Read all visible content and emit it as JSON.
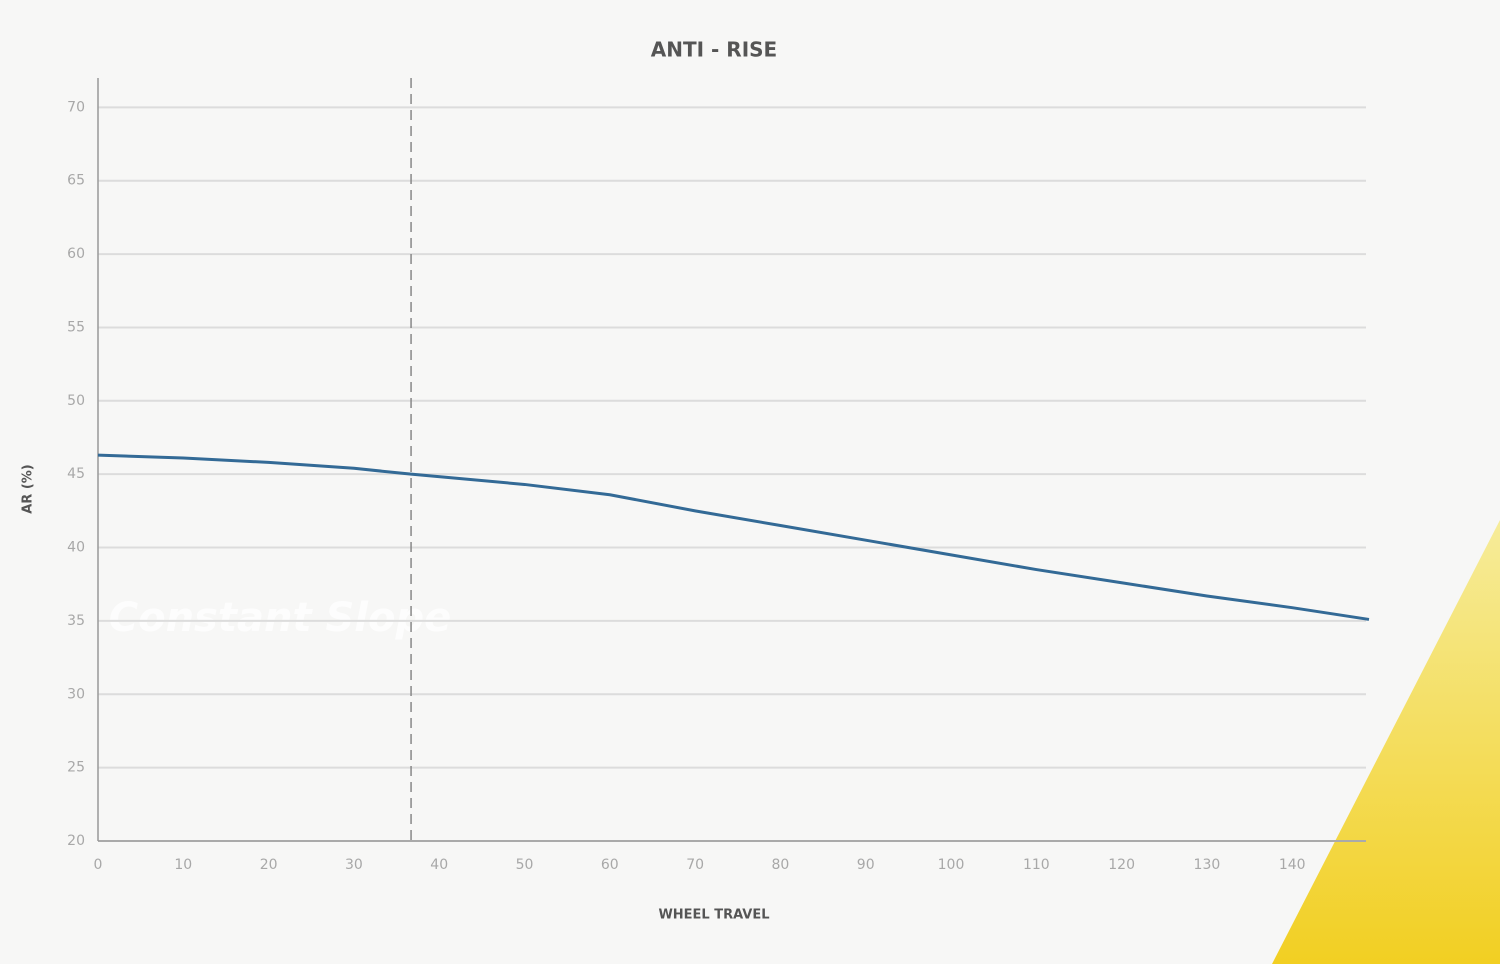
{
  "chart_data": {
    "type": "line",
    "title": "ANTI - RISE",
    "xlabel": "WHEEL TRAVEL",
    "ylabel": "AR (%)",
    "annotation": "Constant Slope",
    "x": [
      0,
      10,
      20,
      30,
      36.7,
      50,
      60,
      70,
      80,
      90,
      100,
      110,
      120,
      130,
      140,
      149
    ],
    "series": [
      {
        "name": "AR",
        "color": "#336a96",
        "values": [
          46.3,
          46.1,
          45.8,
          45.4,
          45.0,
          44.3,
          43.6,
          42.5,
          41.5,
          40.5,
          39.5,
          38.5,
          37.6,
          36.7,
          35.9,
          35.1
        ]
      }
    ],
    "vline": 36.7,
    "xlim": [
      0,
      149
    ],
    "ylim": [
      20,
      72
    ],
    "xticks": [
      0,
      10,
      20,
      30,
      40,
      50,
      60,
      70,
      80,
      90,
      100,
      110,
      120,
      130,
      140
    ],
    "yticks": [
      20,
      25,
      30,
      35,
      40,
      45,
      50,
      55,
      60,
      65,
      70
    ],
    "grid": true
  }
}
